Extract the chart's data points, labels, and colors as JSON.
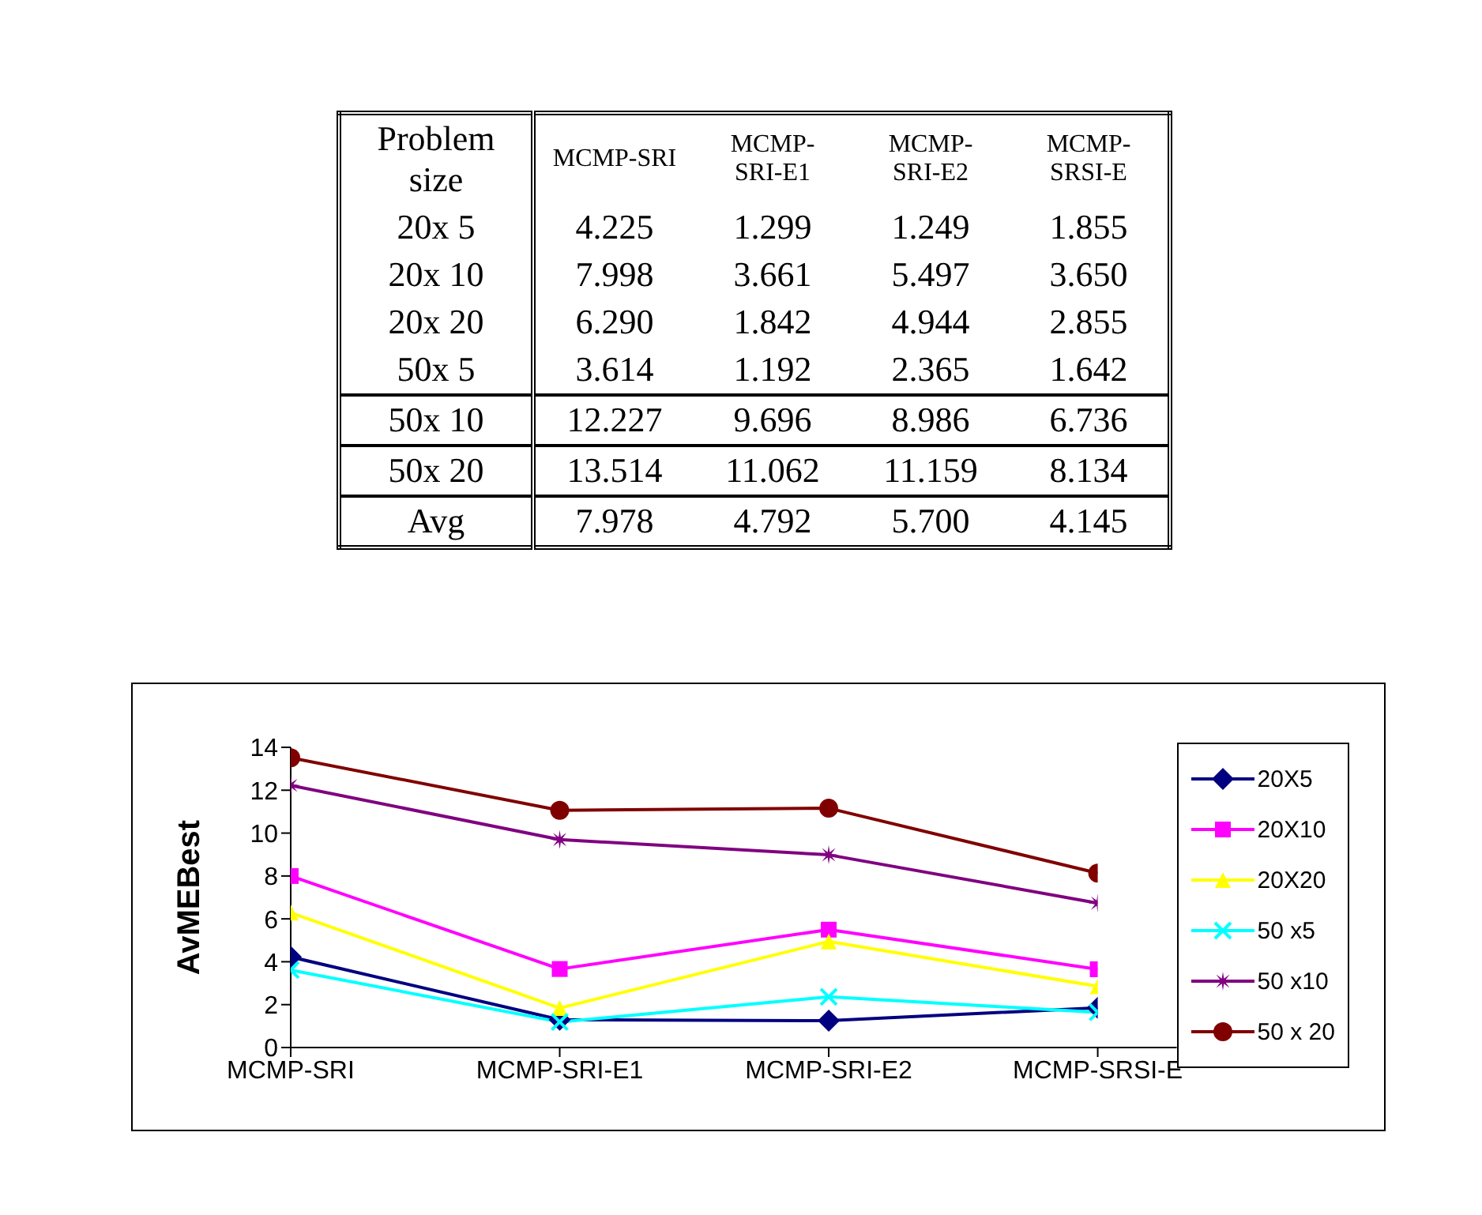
{
  "chart_data": [
    {
      "type": "other",
      "annotations": [
        "Problem size",
        "MCMP-SRI",
        "MCMP-SRI-E1",
        "MCMP-SRI-E2",
        "MCMP-SRSI-E",
        "20x 5",
        "4.225",
        "1.299",
        "1.249",
        "1.855",
        "20x 10",
        "7.998",
        "3.661",
        "5.497",
        "3.650",
        "20x 20",
        "6.290",
        "1.842",
        "4.944",
        "2.855",
        "50x 5",
        "3.614",
        "1.192",
        "2.365",
        "1.642",
        "50x 10",
        "12.227",
        "9.696",
        "8.986",
        "6.736",
        "50x 20",
        "13.514",
        "11.062",
        "11.159",
        "8.134",
        "Avg",
        "7.978",
        "4.792",
        "5.700",
        "4.145"
      ]
    },
    {
      "type": "line",
      "ylabel": "AvMEBest",
      "categories": [
        "MCMP-SRI",
        "MCMP-SRI-E1",
        "MCMP-SRI-E2",
        "MCMP-SRSI-E"
      ],
      "ylim": [
        0,
        14
      ],
      "yticks": [
        0,
        2,
        4,
        6,
        8,
        10,
        12,
        14
      ],
      "legend": "right",
      "grid": false,
      "series": [
        {
          "name": "20X5",
          "color": "#000080",
          "marker": "diamond",
          "values": [
            4.225,
            1.299,
            1.249,
            1.855
          ]
        },
        {
          "name": "20X10",
          "color": "#ff00ff",
          "marker": "square",
          "values": [
            7.998,
            3.661,
            5.497,
            3.65
          ]
        },
        {
          "name": "20X20",
          "color": "#ffff00",
          "marker": "triangle",
          "values": [
            6.29,
            1.842,
            4.944,
            2.855
          ]
        },
        {
          "name": "50 x5",
          "color": "#00ffff",
          "marker": "cross",
          "values": [
            3.614,
            1.192,
            2.365,
            1.642
          ]
        },
        {
          "name": "50 x10",
          "color": "#800080",
          "marker": "star",
          "values": [
            12.227,
            9.696,
            8.986,
            6.736
          ]
        },
        {
          "name": "50 x 20",
          "color": "#800000",
          "marker": "circle",
          "values": [
            13.514,
            11.062,
            11.159,
            8.134
          ]
        }
      ]
    }
  ]
}
